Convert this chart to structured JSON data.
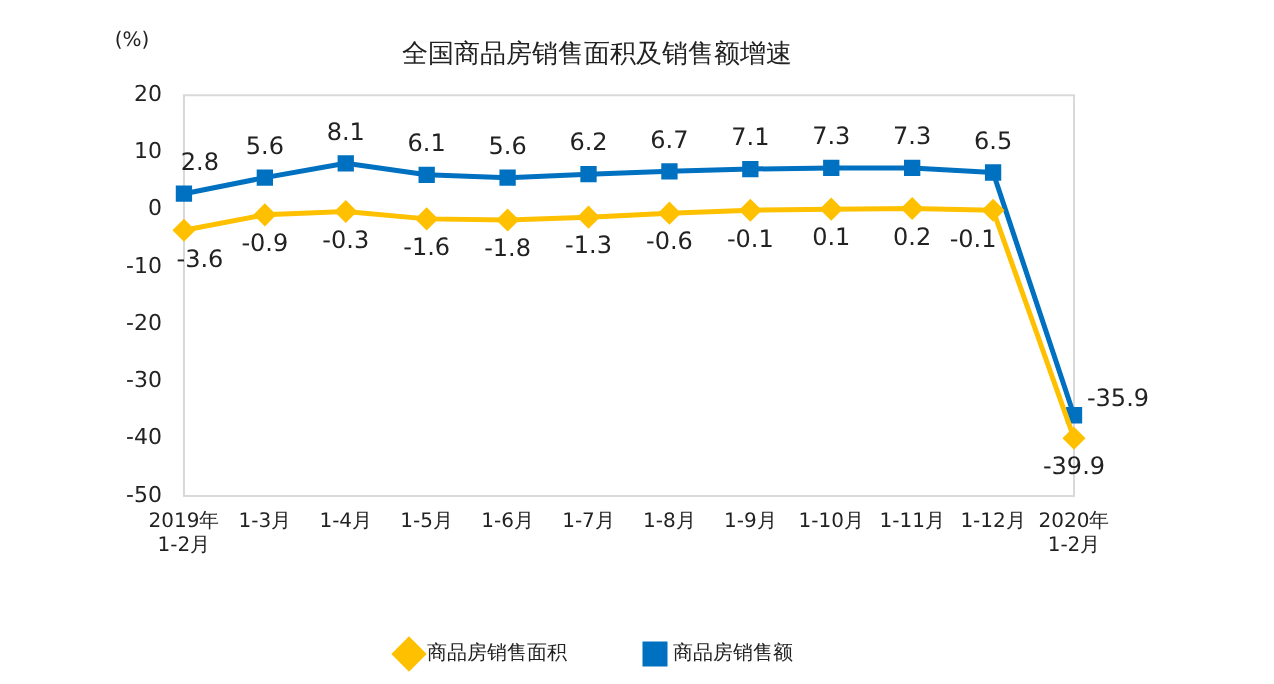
{
  "chart_data": {
    "type": "line",
    "title": "全国商品房销售面积及销售额增速",
    "ylabel": "(%)",
    "categories": [
      "2019年\n1-2月",
      "1-3月",
      "1-4月",
      "1-5月",
      "1-6月",
      "1-7月",
      "1-8月",
      "1-9月",
      "1-10月",
      "1-11月",
      "1-12月",
      "2020年\n1-2月"
    ],
    "series": [
      {
        "name": "商品房销售面积",
        "color": "#ffc000",
        "marker": "diamond",
        "values": [
          -3.6,
          -0.9,
          -0.3,
          -1.6,
          -1.8,
          -1.3,
          -0.6,
          -0.1,
          0.1,
          0.2,
          -0.1,
          -39.9
        ]
      },
      {
        "name": "商品房销售额",
        "color": "#0070c0",
        "marker": "square",
        "values": [
          2.8,
          5.6,
          8.1,
          6.1,
          5.6,
          6.2,
          6.7,
          7.1,
          7.3,
          7.3,
          6.5,
          -35.9
        ]
      }
    ],
    "ylim": [
      -50,
      20
    ],
    "yticks": [
      -50,
      -40,
      -30,
      -20,
      -10,
      0,
      10,
      20
    ],
    "grid": false,
    "legend": "bottom",
    "data_labels": true,
    "line_style": "solid"
  }
}
